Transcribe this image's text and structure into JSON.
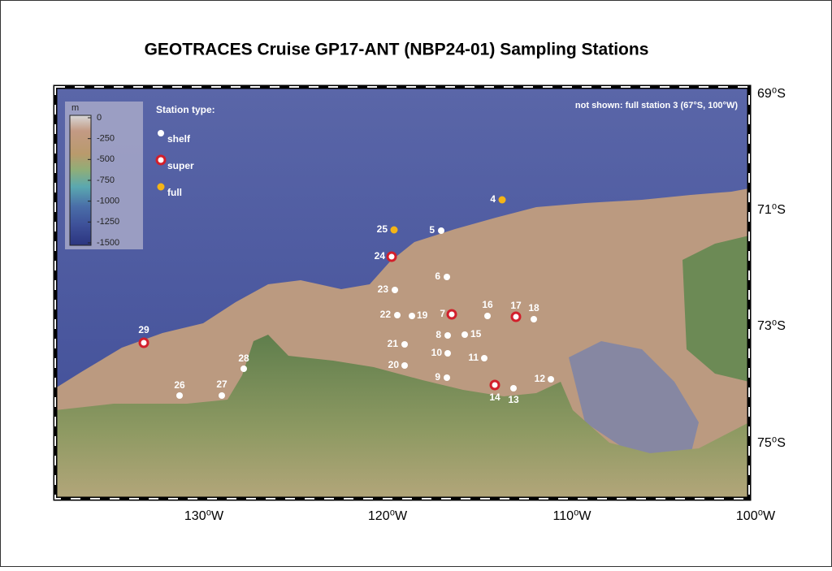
{
  "title": "GEOTRACES Cruise GP17-ANT (NBP24-01) Sampling Stations",
  "note": "not shown: full station 3 (67°S, 100°W)",
  "colorbar": {
    "unit": "m",
    "ticks": [
      0,
      -250,
      -500,
      -750,
      -1000,
      -1250,
      -1500
    ]
  },
  "legend": {
    "title": "Station type:",
    "items": [
      {
        "label": "shelf",
        "type": "shelf"
      },
      {
        "label": "super",
        "type": "super"
      },
      {
        "label": "full",
        "type": "full"
      }
    ]
  },
  "lon_labels": [
    "130⁰W",
    "120⁰W",
    "110⁰W",
    "100⁰W"
  ],
  "lat_labels": [
    "69⁰S",
    "71⁰S",
    "73⁰S",
    "75⁰S"
  ],
  "stations": [
    {
      "label": "4",
      "type": "full"
    },
    {
      "label": "25",
      "type": "full"
    },
    {
      "label": "5",
      "type": "shelf"
    },
    {
      "label": "24",
      "type": "super"
    },
    {
      "label": "6",
      "type": "shelf"
    },
    {
      "label": "23",
      "type": "shelf"
    },
    {
      "label": "22",
      "type": "shelf"
    },
    {
      "label": "19",
      "type": "shelf"
    },
    {
      "label": "7",
      "type": "super"
    },
    {
      "label": "16",
      "type": "shelf"
    },
    {
      "label": "17",
      "type": "super"
    },
    {
      "label": "18",
      "type": "shelf"
    },
    {
      "label": "8",
      "type": "shelf"
    },
    {
      "label": "15",
      "type": "shelf"
    },
    {
      "label": "21",
      "type": "shelf"
    },
    {
      "label": "10",
      "type": "shelf"
    },
    {
      "label": "11",
      "type": "shelf"
    },
    {
      "label": "20",
      "type": "shelf"
    },
    {
      "label": "9",
      "type": "shelf"
    },
    {
      "label": "12",
      "type": "shelf"
    },
    {
      "label": "14",
      "type": "super"
    },
    {
      "label": "13",
      "type": "shelf"
    },
    {
      "label": "29",
      "type": "super"
    },
    {
      "label": "28",
      "type": "shelf"
    },
    {
      "label": "26",
      "type": "shelf"
    },
    {
      "label": "27",
      "type": "shelf"
    }
  ]
}
